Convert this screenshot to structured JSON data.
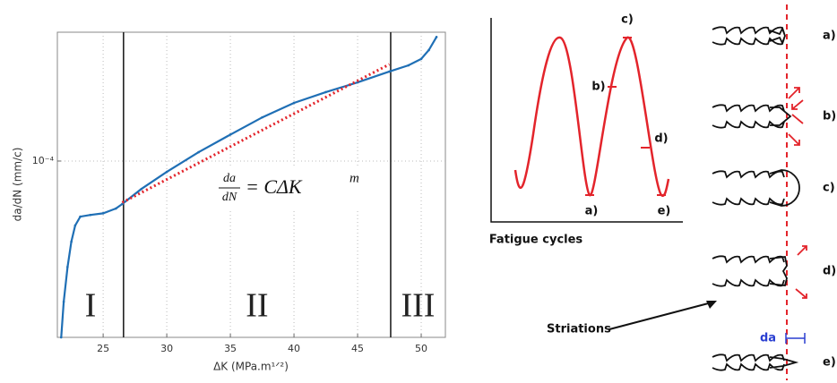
{
  "chart_data": {
    "type": "line",
    "x_label": "ΔK (MPa.m¹ᐟ²)",
    "y_label": "da/dN (mm/c)",
    "xlim": [
      21.4,
      51.9
    ],
    "ylim": [
      1.5e-05,
      0.0004
    ],
    "log_y": true,
    "grid": true,
    "xticks": [
      25,
      30,
      35,
      40,
      45,
      50
    ],
    "yticks": [
      {
        "value": 0.0001,
        "label": "10⁻⁴"
      }
    ],
    "x": [
      21.7,
      21.9,
      22.2,
      22.5,
      22.8,
      23.2,
      24,
      25,
      26,
      26.5,
      28,
      30,
      32.5,
      35,
      37.5,
      40,
      42.5,
      45,
      47.5,
      49,
      50,
      50.6,
      51.2
    ],
    "series": [
      {
        "color": "#1f6fb5",
        "values": [
          1.5e-05,
          2.2e-05,
          3.2e-05,
          4.2e-05,
          5e-05,
          5.5e-05,
          5.6e-05,
          5.7e-05,
          6e-05,
          6.3e-05,
          7.4e-05,
          8.9e-05,
          0.00011,
          0.000133,
          0.00016,
          0.000187,
          0.00021,
          0.000233,
          0.000262,
          0.00028,
          0.0003,
          0.00033,
          0.00038
        ]
      }
    ],
    "fit": {
      "color": "#e3242b",
      "x": [
        26.5,
        47.5
      ],
      "values": [
        6.4e-05,
        0.000283
      ]
    },
    "region_boundaries": [
      26.6,
      47.6
    ],
    "region_labels": [
      "I",
      "II",
      "III"
    ],
    "equation": {
      "numerator": "da",
      "denominator": "dN",
      "rhs": "= CΔK",
      "exponent": "m"
    }
  },
  "diagram": {
    "x_label": "Fatigue cycles",
    "cycle_points": [
      "a)",
      "b)",
      "c)",
      "d)",
      "e)"
    ],
    "stage_labels": [
      "a)",
      "b)",
      "c)",
      "d)",
      "e)"
    ],
    "striations_label": "Striations",
    "da_label": "da"
  }
}
